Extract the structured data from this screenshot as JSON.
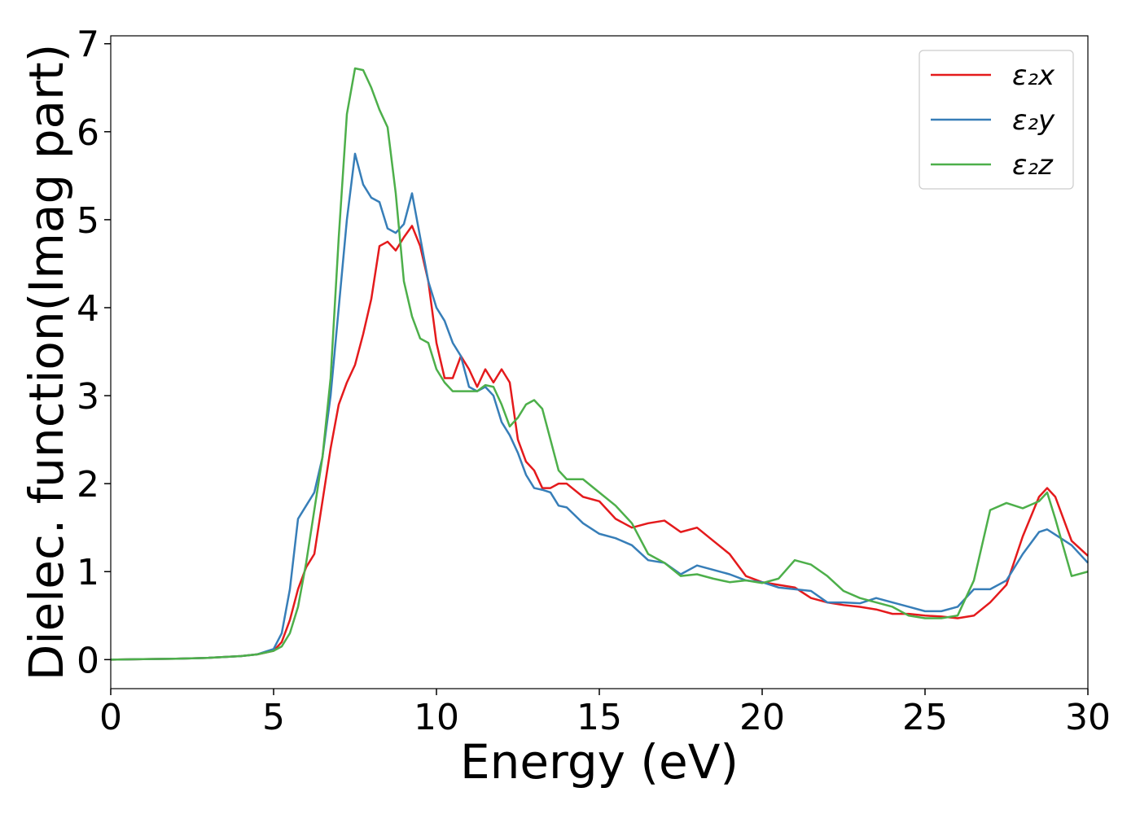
{
  "chart_data": {
    "type": "line",
    "xlabel": "Energy (eV)",
    "ylabel": "Dielec. function(Imag part)",
    "x": [
      0,
      1,
      2,
      3,
      4,
      4.5,
      5,
      5.25,
      5.5,
      5.75,
      6,
      6.25,
      6.5,
      6.75,
      7,
      7.25,
      7.5,
      7.75,
      8,
      8.25,
      8.5,
      8.75,
      9,
      9.25,
      9.5,
      9.75,
      10,
      10.25,
      10.5,
      10.75,
      11,
      11.25,
      11.5,
      11.75,
      12,
      12.25,
      12.5,
      12.75,
      13,
      13.25,
      13.5,
      13.75,
      14,
      14.5,
      15,
      15.5,
      16,
      16.5,
      17,
      17.5,
      18,
      18.5,
      19,
      19.5,
      20,
      20.5,
      21,
      21.5,
      22,
      22.5,
      23,
      23.5,
      24,
      24.5,
      25,
      25.5,
      26,
      26.5,
      27,
      27.5,
      28,
      28.5,
      28.75,
      29,
      29.5,
      30
    ],
    "series": [
      {
        "name": "ε₂x",
        "color": "#e41a1c",
        "values": [
          0,
          0.005,
          0.01,
          0.02,
          0.04,
          0.06,
          0.1,
          0.2,
          0.45,
          0.8,
          1.05,
          1.2,
          1.8,
          2.4,
          2.9,
          3.15,
          3.35,
          3.7,
          4.1,
          4.7,
          4.75,
          4.65,
          4.8,
          4.93,
          4.7,
          4.3,
          3.6,
          3.2,
          3.2,
          3.45,
          3.3,
          3.1,
          3.3,
          3.15,
          3.3,
          3.15,
          2.5,
          2.25,
          2.15,
          1.95,
          1.95,
          2.0,
          2.0,
          1.85,
          1.8,
          1.6,
          1.5,
          1.55,
          1.58,
          1.45,
          1.5,
          1.35,
          1.2,
          0.95,
          0.88,
          0.85,
          0.82,
          0.7,
          0.65,
          0.62,
          0.6,
          0.57,
          0.52,
          0.52,
          0.5,
          0.49,
          0.47,
          0.5,
          0.65,
          0.85,
          1.4,
          1.85,
          1.95,
          1.85,
          1.35,
          1.18
        ]
      },
      {
        "name": "ε₂y",
        "color": "#377eb8",
        "values": [
          0,
          0.005,
          0.01,
          0.02,
          0.04,
          0.06,
          0.12,
          0.3,
          0.8,
          1.6,
          1.75,
          1.9,
          2.3,
          3.0,
          4.0,
          5.0,
          5.75,
          5.4,
          5.25,
          5.2,
          4.9,
          4.85,
          4.95,
          5.3,
          4.8,
          4.3,
          4.0,
          3.85,
          3.6,
          3.45,
          3.1,
          3.05,
          3.1,
          3.0,
          2.7,
          2.55,
          2.35,
          2.1,
          1.95,
          1.93,
          1.9,
          1.75,
          1.73,
          1.55,
          1.43,
          1.38,
          1.3,
          1.13,
          1.1,
          0.97,
          1.07,
          1.02,
          0.97,
          0.9,
          0.88,
          0.82,
          0.8,
          0.78,
          0.65,
          0.65,
          0.64,
          0.7,
          0.65,
          0.6,
          0.55,
          0.55,
          0.6,
          0.8,
          0.8,
          0.9,
          1.2,
          1.45,
          1.48,
          1.42,
          1.3,
          1.1
        ]
      },
      {
        "name": "ε₂z",
        "color": "#4daf4a",
        "values": [
          0,
          0.005,
          0.01,
          0.02,
          0.04,
          0.06,
          0.1,
          0.15,
          0.3,
          0.6,
          1.1,
          1.7,
          2.3,
          3.2,
          4.8,
          6.2,
          6.72,
          6.7,
          6.5,
          6.25,
          6.05,
          5.3,
          4.3,
          3.9,
          3.65,
          3.6,
          3.3,
          3.15,
          3.05,
          3.05,
          3.05,
          3.05,
          3.12,
          3.1,
          2.9,
          2.65,
          2.75,
          2.9,
          2.95,
          2.85,
          2.5,
          2.15,
          2.05,
          2.05,
          1.9,
          1.75,
          1.55,
          1.2,
          1.1,
          0.95,
          0.97,
          0.92,
          0.88,
          0.9,
          0.87,
          0.92,
          1.13,
          1.08,
          0.95,
          0.78,
          0.7,
          0.65,
          0.6,
          0.5,
          0.47,
          0.47,
          0.5,
          0.9,
          1.7,
          1.78,
          1.72,
          1.8,
          1.9,
          1.6,
          0.95,
          1.0
        ]
      }
    ],
    "xlim": [
      0,
      30
    ],
    "xticks": [
      0,
      5,
      10,
      15,
      20,
      25,
      30
    ],
    "ylim": [
      -0.33,
      7.09
    ],
    "yticks": [
      0,
      1,
      2,
      3,
      4,
      5,
      6,
      7
    ],
    "legend": "upper-right"
  }
}
